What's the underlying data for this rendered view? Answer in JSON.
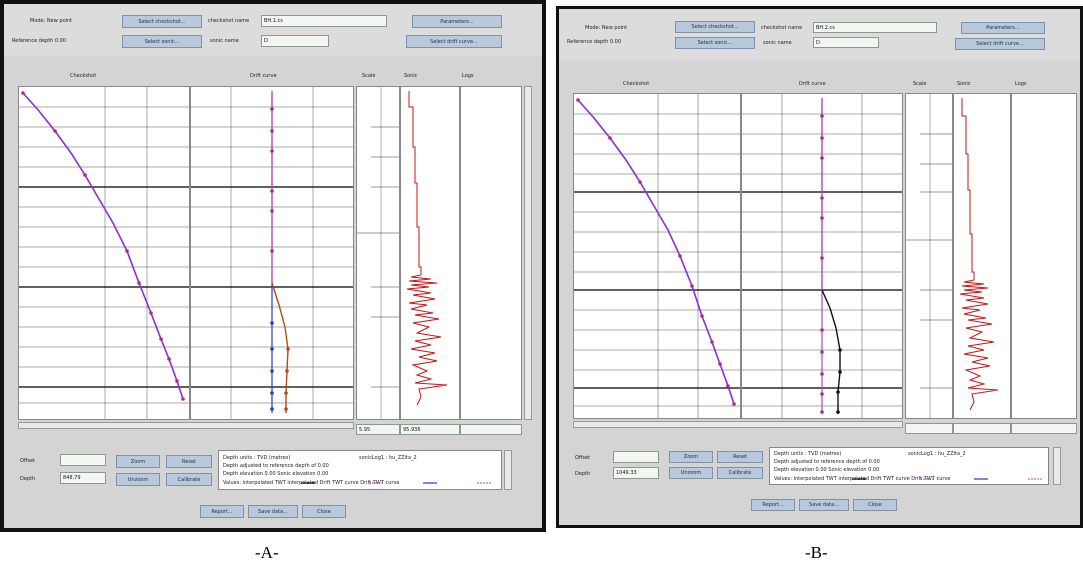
{
  "figure_labels": {
    "a": "-A-",
    "b": "-B-"
  },
  "panels": [
    {
      "id": "A",
      "mode_text": "Mode:  New point",
      "reference_depth": "Reference depth 0.00",
      "select_checkshot_label": "Select checkshot...",
      "select_sonic_label": "Select sonic...",
      "checkshot_name_label": "checkshot name",
      "checkshot_name_value": "BH.1.cs",
      "sonic_name_label": "sonic name",
      "sonic_name_value": "D",
      "parameters_label": "Parameters...",
      "select_drift_label": "Select drift curve...",
      "col_checkshot": "Checkshot",
      "col_drift": "Drift curve",
      "col_scale": "Scale",
      "col_sonic": "Sonic",
      "col_logs": "Logs",
      "scale_field": "5.95",
      "sonic_field": "95.936",
      "offset_label": "Offset",
      "depth_label": "Depth",
      "depth_value": "848.79",
      "zoom_label": "Zoom",
      "unzoom_label": "Unzoom",
      "reset_label": "Reset",
      "calibrate_label": "Calibrate",
      "legend_lines": [
        "Depth units : TVD (metres)",
        "Depth adjusted to reference depth of 0.00",
        "Depth elevation 0.00   Sonic elevation 0.00"
      ],
      "legend_right": "sonicLog1 : hu_ZZita_2",
      "legend_keys": "Values: interpolated    TWT interpolated    Drift TWT curve    Drift TWT curve",
      "report_label": "Report...",
      "save_label": "Save data...",
      "close_label": "Close"
    },
    {
      "id": "B",
      "mode_text": "Mode:  New point",
      "reference_depth": "Reference depth 0.00",
      "select_checkshot_label": "Select checkshot...",
      "select_sonic_label": "Select sonic...",
      "checkshot_name_label": "checkshot name",
      "checkshot_name_value": "BH.2.cs",
      "sonic_name_label": "sonic name",
      "sonic_name_value": "D",
      "parameters_label": "Parameters...",
      "select_drift_label": "Select drift curve...",
      "col_checkshot": "Checkshot",
      "col_drift": "Drift curve",
      "col_scale": "Scale",
      "col_sonic": "Sonic",
      "col_logs": "Logs",
      "scale_field": "",
      "sonic_field": "",
      "offset_label": "Offset",
      "depth_label": "Depth",
      "depth_value": "1049.33",
      "zoom_label": "Zoom",
      "unzoom_label": "Unzoom",
      "reset_label": "Reset",
      "calibrate_label": "Calibrate",
      "legend_lines": [
        "Depth units : TVD (metres)",
        "Depth adjusted to reference depth of 0.00",
        "Depth elevation 0.00   Sonic elevation 0.00"
      ],
      "legend_right": "sonicLog1 : hu_ZZita_2",
      "legend_keys": "Values: interpolated    TWT interpolated    Drift TWT curve    Drift TWT curve",
      "report_label": "Report...",
      "save_label": "Save data...",
      "close_label": "Close"
    }
  ],
  "colors": {
    "checkshot_curve": "#8a2be2",
    "checkshot_points": "#b0306a",
    "drift_line": "#c040c0",
    "drift_points_a": "#1e3cd0",
    "drift_curve_a": "#b04a1a",
    "drift_curve_b": "#111111",
    "sonic_log": "#c81414",
    "button_bg": "#b9c9dc"
  }
}
